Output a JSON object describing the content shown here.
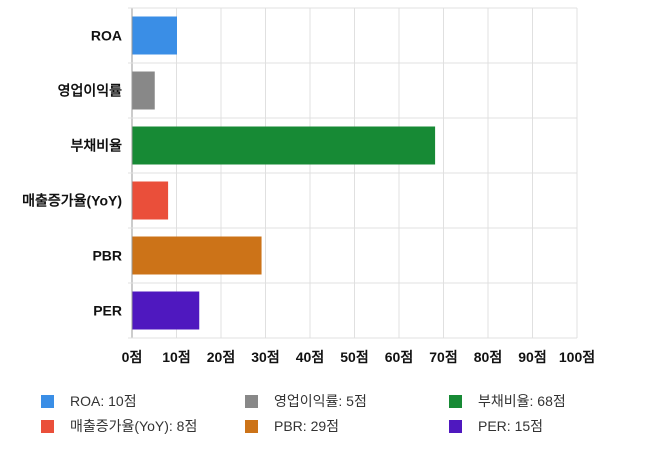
{
  "chart_data": {
    "type": "bar",
    "orientation": "horizontal",
    "categories": [
      "ROA",
      "영업이익률",
      "부채비율",
      "매출증가율(YoY)",
      "PBR",
      "PER"
    ],
    "values": [
      10,
      5,
      68,
      8,
      29,
      15
    ],
    "colors": [
      "#3a8ee6",
      "#888888",
      "#178a35",
      "#ea4f3a",
      "#cc7318",
      "#4f18bf"
    ],
    "xlim": [
      0,
      100
    ],
    "x_ticks": [
      0,
      10,
      20,
      30,
      40,
      50,
      60,
      70,
      80,
      90,
      100
    ],
    "x_tick_labels": [
      "0점",
      "10점",
      "20점",
      "30점",
      "40점",
      "50점",
      "60점",
      "70점",
      "80점",
      "90점",
      "100점"
    ],
    "grid": true,
    "legend_position": "bottom",
    "legend": [
      "ROA: 10점",
      "영업이익률: 5점",
      "부채비율: 68점",
      "매출증가율(YoY): 8점",
      "PBR: 29점",
      "PER: 15점"
    ],
    "title": "",
    "xlabel": "",
    "ylabel": ""
  }
}
